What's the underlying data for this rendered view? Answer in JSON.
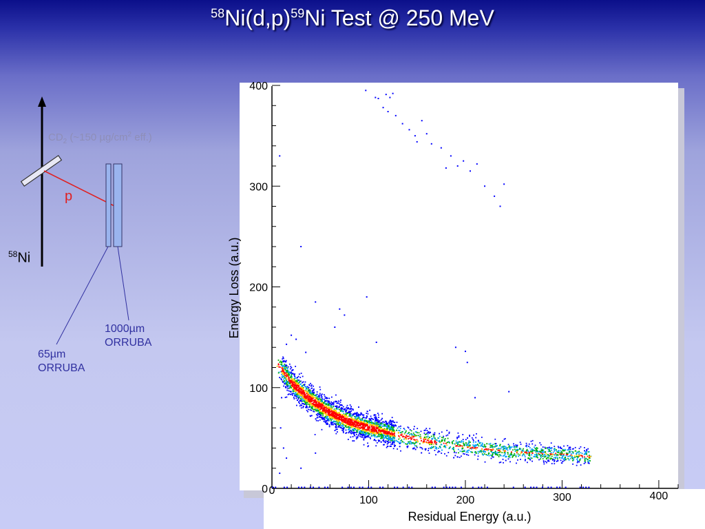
{
  "slide": {
    "title_sup1": "58",
    "title_part1": "Ni(d,p)",
    "title_sup2": "59",
    "title_part2": "Ni Test @ 250 MeV"
  },
  "diagram": {
    "target_main": "CD",
    "target_sub": "2",
    "target_detail": " (~150 µg/cm",
    "target_sup": "2",
    "target_tail": " eff.)",
    "proton": "p",
    "beam_sup": "58",
    "beam": "Ni",
    "thin_detector_line1": "65µm",
    "thin_detector_line2": "ORRUBA",
    "thick_detector_line1": "1000µm",
    "thick_detector_line2": "ORRUBA"
  },
  "colors": {
    "beam_arrow": "#000000",
    "proton_track": "#e02020",
    "detector_fill": "#9ab4ee",
    "detector_leader": "#3030a0",
    "plot_background": "#ffffff",
    "band_low": "#0000ff",
    "band_mid": "#00b000",
    "band_high": "#ff0000"
  },
  "chart_data": {
    "type": "scatter",
    "subtype": "2D histogram (colz)",
    "title": "",
    "xlabel": "Residual Energy (a.u.)",
    "ylabel": "Energy Loss (a.u.)",
    "xlim": [
      0,
      420
    ],
    "ylim": [
      0,
      400
    ],
    "xticks": [
      0,
      100,
      200,
      300,
      400
    ],
    "yticks": [
      0,
      100,
      200,
      300,
      400
    ],
    "grid": false,
    "legend": "none",
    "color_scale": [
      "#0000ff",
      "#00a0ff",
      "#00b000",
      "#ffd000",
      "#ff0000"
    ],
    "proton_band": {
      "description_points": [
        {
          "x": 5,
          "y": 125
        },
        {
          "x": 20,
          "y": 105
        },
        {
          "x": 40,
          "y": 88
        },
        {
          "x": 60,
          "y": 75
        },
        {
          "x": 80,
          "y": 66
        },
        {
          "x": 100,
          "y": 60
        },
        {
          "x": 130,
          "y": 53
        },
        {
          "x": 160,
          "y": 47
        },
        {
          "x": 200,
          "y": 41
        },
        {
          "x": 250,
          "y": 36
        },
        {
          "x": 300,
          "y": 34
        },
        {
          "x": 330,
          "y": 31
        }
      ],
      "peak_x_range": [
        20,
        110
      ]
    },
    "upper_scatter": [
      {
        "x": 97,
        "y": 395
      },
      {
        "x": 107,
        "y": 388
      },
      {
        "x": 110,
        "y": 387
      },
      {
        "x": 118,
        "y": 391
      },
      {
        "x": 122,
        "y": 388
      },
      {
        "x": 125,
        "y": 392
      },
      {
        "x": 115,
        "y": 378
      },
      {
        "x": 120,
        "y": 374
      },
      {
        "x": 128,
        "y": 370
      },
      {
        "x": 135,
        "y": 362
      },
      {
        "x": 142,
        "y": 356
      },
      {
        "x": 148,
        "y": 350
      },
      {
        "x": 160,
        "y": 352
      },
      {
        "x": 165,
        "y": 342
      },
      {
        "x": 175,
        "y": 338
      },
      {
        "x": 185,
        "y": 330
      },
      {
        "x": 192,
        "y": 320
      },
      {
        "x": 198,
        "y": 325
      },
      {
        "x": 205,
        "y": 315
      },
      {
        "x": 212,
        "y": 322
      },
      {
        "x": 220,
        "y": 300
      },
      {
        "x": 230,
        "y": 290
      },
      {
        "x": 236,
        "y": 280
      },
      {
        "x": 240,
        "y": 302
      },
      {
        "x": 150,
        "y": 344
      },
      {
        "x": 155,
        "y": 365
      },
      {
        "x": 180,
        "y": 318
      },
      {
        "x": 8,
        "y": 330
      }
    ],
    "sparse_points": [
      {
        "x": 30,
        "y": 240
      },
      {
        "x": 45,
        "y": 185
      },
      {
        "x": 98,
        "y": 190
      },
      {
        "x": 70,
        "y": 178
      },
      {
        "x": 75,
        "y": 172
      },
      {
        "x": 65,
        "y": 160
      },
      {
        "x": 20,
        "y": 152
      },
      {
        "x": 25,
        "y": 148
      },
      {
        "x": 15,
        "y": 143
      },
      {
        "x": 35,
        "y": 135
      },
      {
        "x": 108,
        "y": 145
      },
      {
        "x": 190,
        "y": 140
      },
      {
        "x": 200,
        "y": 136
      },
      {
        "x": 202,
        "y": 125
      },
      {
        "x": 210,
        "y": 90
      },
      {
        "x": 245,
        "y": 96
      },
      {
        "x": 8,
        "y": 110
      },
      {
        "x": 10,
        "y": 90
      },
      {
        "x": 9,
        "y": 60
      },
      {
        "x": 12,
        "y": 40
      },
      {
        "x": 15,
        "y": 30
      },
      {
        "x": 30,
        "y": 20
      },
      {
        "x": 45,
        "y": 35
      },
      {
        "x": 8,
        "y": 15
      }
    ]
  }
}
